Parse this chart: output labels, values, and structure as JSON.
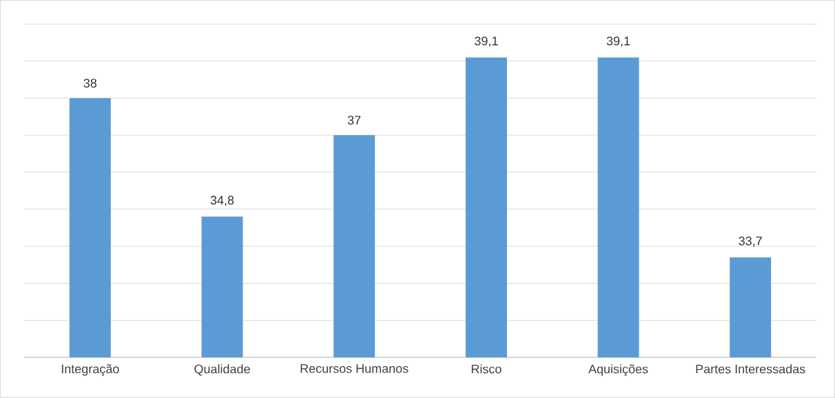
{
  "chart_data": {
    "type": "bar",
    "categories": [
      "Integração",
      "Qualidade",
      "Recursos Humanos",
      "Risco",
      "Aquisições",
      "Partes Interessadas"
    ],
    "values": [
      38,
      34.8,
      37,
      39.1,
      39.1,
      33.7
    ],
    "value_labels": [
      "38",
      "34,8",
      "37",
      "39,1",
      "39,1",
      "33,7"
    ],
    "color": "#5b9bd5",
    "ylim": [
      31,
      40
    ],
    "yticks": [
      {
        "value": 31,
        "label": null
      },
      {
        "value": 32,
        "label": null
      },
      {
        "value": 33,
        "label": null
      },
      {
        "value": 34,
        "label": null
      },
      {
        "value": 35,
        "label": null
      },
      {
        "value": 36,
        "label": null
      },
      {
        "value": 37,
        "label": null
      },
      {
        "value": 38,
        "label": null
      },
      {
        "value": 39,
        "label": null
      },
      {
        "value": 40,
        "label": null
      }
    ],
    "grid": "y",
    "tick_labels": "x"
  }
}
